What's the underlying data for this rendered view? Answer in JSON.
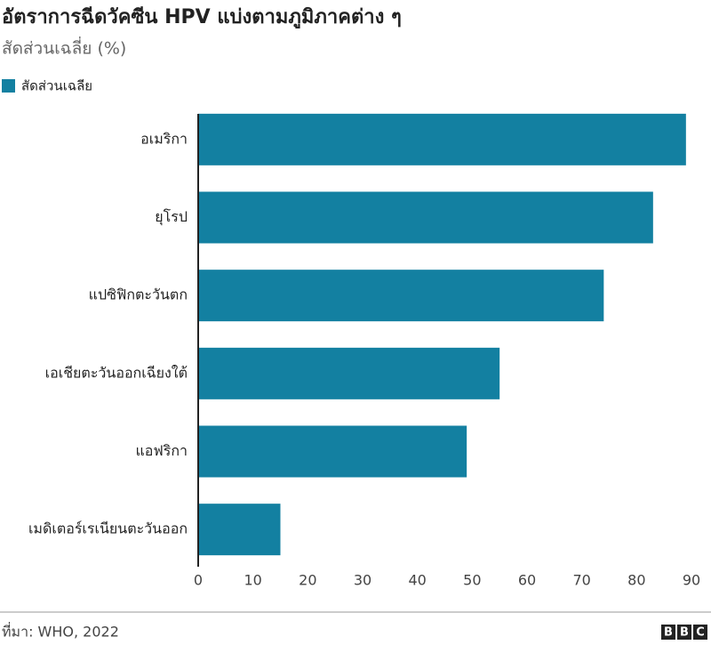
{
  "chart_data": {
    "type": "bar",
    "orientation": "horizontal",
    "title": "อัตราการฉีดวัคซีน HPV แบ่งตามภูมิภาคต่าง ๆ",
    "subtitle": "สัดส่วนเฉลี่ย (%)",
    "categories": [
      "อเมริกา",
      "ยุโรป",
      "แปซิฟิกตะวันตก",
      "เอเชียตะวันออกเฉียงใต้",
      "แอฟริกา",
      "เมดิเตอร์เรเนียนตะวันออก"
    ],
    "series": [
      {
        "name": "สัดส่วนเฉลีย",
        "color": "#1380a1",
        "values": [
          89,
          83,
          74,
          55,
          49,
          15
        ]
      }
    ],
    "xlim": [
      0,
      90
    ],
    "xticks": [
      0,
      10,
      20,
      30,
      40,
      50,
      60,
      70,
      80,
      90
    ],
    "grid": false,
    "legend": "top-left",
    "source": "ที่มา: WHO, 2022",
    "logo": [
      "B",
      "B",
      "C"
    ]
  }
}
